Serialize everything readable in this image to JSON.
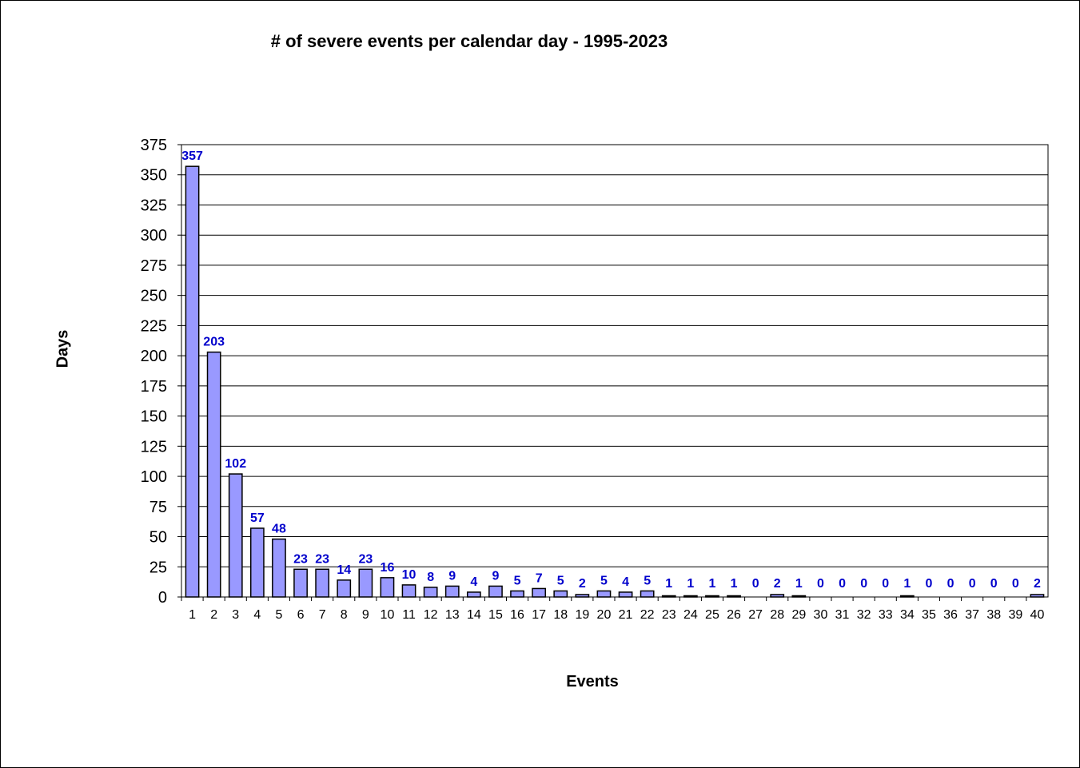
{
  "chart_data": {
    "type": "bar",
    "title": "# of severe events per calendar day - 1995-2023",
    "xlabel": "Events",
    "ylabel": "Days",
    "ylim": [
      0,
      375
    ],
    "ytick_step": 25,
    "grid": true,
    "bar_color": "#9999ff",
    "label_color": "#0000cc",
    "categories": [
      "1",
      "2",
      "3",
      "4",
      "5",
      "6",
      "7",
      "8",
      "9",
      "10",
      "11",
      "12",
      "13",
      "14",
      "15",
      "16",
      "17",
      "18",
      "19",
      "20",
      "21",
      "22",
      "23",
      "24",
      "25",
      "26",
      "27",
      "28",
      "29",
      "30",
      "31",
      "32",
      "33",
      "34",
      "35",
      "36",
      "37",
      "38",
      "39",
      "40"
    ],
    "values": [
      357,
      203,
      102,
      57,
      48,
      23,
      23,
      14,
      23,
      16,
      10,
      8,
      9,
      4,
      9,
      5,
      7,
      5,
      2,
      5,
      4,
      5,
      1,
      1,
      1,
      1,
      0,
      2,
      1,
      0,
      0,
      0,
      0,
      1,
      0,
      0,
      0,
      0,
      0,
      2
    ]
  }
}
